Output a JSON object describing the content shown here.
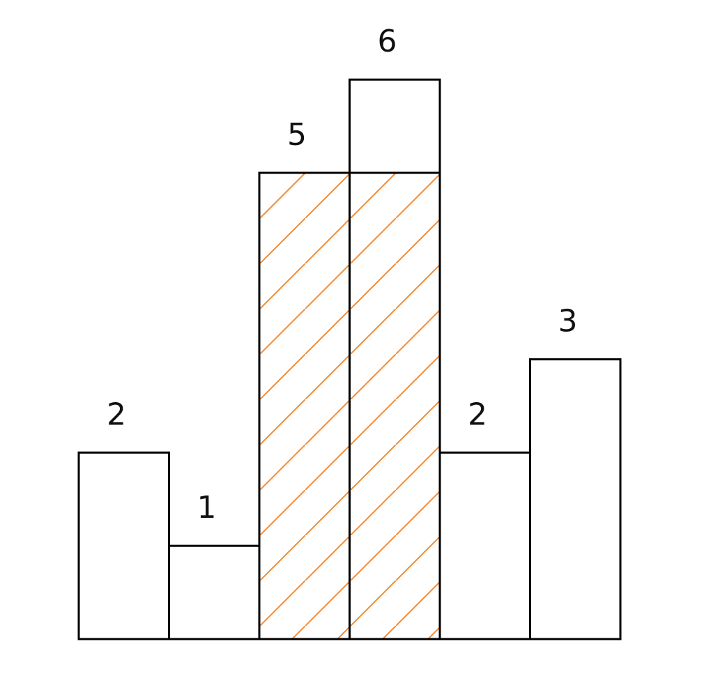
{
  "chart_data": {
    "type": "bar",
    "values": [
      2,
      1,
      5,
      6,
      2,
      3
    ],
    "labels": [
      "2",
      "1",
      "5",
      "6",
      "2",
      "3"
    ],
    "highlight": {
      "bars": [
        2,
        3
      ],
      "height": 5,
      "pattern": "diagonal-hatch",
      "color": "#f58a33"
    },
    "colors": {
      "bar_fill": "#ffffff",
      "bar_stroke": "#000000",
      "label": "#111111"
    }
  }
}
